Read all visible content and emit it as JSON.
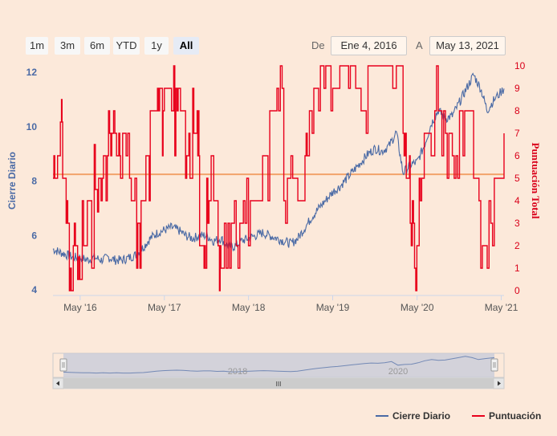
{
  "range_selector": {
    "buttons": [
      "1m",
      "3m",
      "6m",
      "YTD",
      "1y",
      "All"
    ],
    "active": "All",
    "from_label": "De",
    "from_value": "Ene 4, 2016",
    "to_label": "A",
    "to_value": "May 13, 2021"
  },
  "navigator": {
    "year_labels": [
      "2018",
      "2020"
    ],
    "scroll_grip": "III"
  },
  "colors": {
    "background": "#fce9da",
    "cierre": "#4a6aa5",
    "puntuacion": "#e8001c",
    "plot_line": "#f2a36b"
  },
  "chart_data": {
    "type": "line",
    "x_ticks": [
      "May '16",
      "May '17",
      "May '18",
      "May '19",
      "May '20",
      "May '21"
    ],
    "x_range": [
      "2016-01-04",
      "2021-05-13"
    ],
    "y_left": {
      "label": "Cierre Diario",
      "ticks": [
        "4",
        "6",
        "8",
        "10",
        "12"
      ],
      "range": [
        3.8,
        12.5
      ]
    },
    "y_right": {
      "label": "Puntuación Total",
      "ticks": [
        "0",
        "1",
        "2",
        "3",
        "4",
        "5",
        "6",
        "7",
        "8",
        "9",
        "10"
      ],
      "range": [
        0,
        10
      ]
    },
    "plot_line_left_value": 8.25,
    "legend": [
      "Cierre Diario",
      "Puntuación"
    ],
    "legend_position": "bottom-right",
    "grid": false,
    "series": [
      {
        "name": "Cierre Diario",
        "axis": "left",
        "points": [
          [
            "2016-01-04",
            5.5
          ],
          [
            "2016-02-01",
            5.4
          ],
          [
            "2016-03-01",
            5.3
          ],
          [
            "2016-04-01",
            5.2
          ],
          [
            "2016-05-01",
            5.2
          ],
          [
            "2016-06-01",
            5.1
          ],
          [
            "2016-07-01",
            5.2
          ],
          [
            "2016-08-01",
            5.1
          ],
          [
            "2016-09-01",
            5.2
          ],
          [
            "2016-10-01",
            5.1
          ],
          [
            "2016-11-01",
            5.1
          ],
          [
            "2016-12-01",
            5.2
          ],
          [
            "2017-01-01",
            5.3
          ],
          [
            "2017-02-01",
            5.6
          ],
          [
            "2017-03-01",
            5.9
          ],
          [
            "2017-04-01",
            6.1
          ],
          [
            "2017-05-01",
            6.2
          ],
          [
            "2017-06-01",
            6.3
          ],
          [
            "2017-07-01",
            6.2
          ],
          [
            "2017-08-01",
            6.0
          ],
          [
            "2017-09-01",
            5.9
          ],
          [
            "2017-10-01",
            6.0
          ],
          [
            "2017-11-01",
            6.0
          ],
          [
            "2017-12-01",
            5.8
          ],
          [
            "2018-01-01",
            5.9
          ],
          [
            "2018-02-01",
            5.6
          ],
          [
            "2018-03-01",
            5.6
          ],
          [
            "2018-04-01",
            5.8
          ],
          [
            "2018-05-01",
            5.9
          ],
          [
            "2018-06-01",
            6.0
          ],
          [
            "2018-07-01",
            6.1
          ],
          [
            "2018-08-01",
            6.0
          ],
          [
            "2018-09-01",
            5.9
          ],
          [
            "2018-10-01",
            5.8
          ],
          [
            "2018-11-01",
            5.7
          ],
          [
            "2018-12-01",
            5.9
          ],
          [
            "2019-01-01",
            6.3
          ],
          [
            "2019-02-01",
            6.7
          ],
          [
            "2019-03-01",
            7.0
          ],
          [
            "2019-04-01",
            7.3
          ],
          [
            "2019-05-01",
            7.6
          ],
          [
            "2019-06-01",
            7.8
          ],
          [
            "2019-07-01",
            8.1
          ],
          [
            "2019-08-01",
            8.4
          ],
          [
            "2019-09-01",
            8.7
          ],
          [
            "2019-10-01",
            9.0
          ],
          [
            "2019-11-01",
            9.2
          ],
          [
            "2019-12-01",
            9.1
          ],
          [
            "2020-01-01",
            9.3
          ],
          [
            "2020-02-01",
            9.8
          ],
          [
            "2020-03-01",
            8.3
          ],
          [
            "2020-04-01",
            8.6
          ],
          [
            "2020-05-01",
            8.7
          ],
          [
            "2020-06-01",
            9.3
          ],
          [
            "2020-07-01",
            10.1
          ],
          [
            "2020-08-01",
            10.6
          ],
          [
            "2020-09-01",
            10.3
          ],
          [
            "2020-10-01",
            10.4
          ],
          [
            "2020-11-01",
            10.9
          ],
          [
            "2020-12-01",
            11.4
          ],
          [
            "2021-01-01",
            11.9
          ],
          [
            "2021-02-01",
            11.4
          ],
          [
            "2021-03-01",
            10.6
          ],
          [
            "2021-04-01",
            11.0
          ],
          [
            "2021-05-13",
            11.4
          ]
        ]
      },
      {
        "name": "Puntuación",
        "axis": "right",
        "points": [
          [
            "2016-01-04",
            5
          ],
          [
            "2016-01-20",
            6
          ],
          [
            "2016-02-05",
            7.5
          ],
          [
            "2016-02-15",
            5
          ],
          [
            "2016-03-01",
            3
          ],
          [
            "2016-03-15",
            0
          ],
          [
            "2016-04-01",
            2
          ],
          [
            "2016-04-20",
            0.5
          ],
          [
            "2016-05-10",
            2
          ],
          [
            "2016-06-01",
            4
          ],
          [
            "2016-06-20",
            1
          ],
          [
            "2016-07-01",
            4.5
          ],
          [
            "2016-07-20",
            5
          ],
          [
            "2016-08-10",
            6
          ],
          [
            "2016-09-01",
            7
          ],
          [
            "2016-09-20",
            8
          ],
          [
            "2016-10-01",
            6
          ],
          [
            "2016-10-20",
            5
          ],
          [
            "2016-11-01",
            7
          ],
          [
            "2016-12-01",
            5
          ],
          [
            "2017-01-01",
            1
          ],
          [
            "2017-01-20",
            4
          ],
          [
            "2017-02-10",
            6
          ],
          [
            "2017-03-01",
            8
          ],
          [
            "2017-04-01",
            9
          ],
          [
            "2017-04-20",
            8
          ],
          [
            "2017-05-01",
            9
          ],
          [
            "2017-06-01",
            8
          ],
          [
            "2017-06-20",
            9
          ],
          [
            "2017-07-10",
            8
          ],
          [
            "2017-08-01",
            6
          ],
          [
            "2017-08-20",
            5
          ],
          [
            "2017-09-01",
            7
          ],
          [
            "2017-09-20",
            8
          ],
          [
            "2017-10-01",
            2
          ],
          [
            "2017-10-20",
            1
          ],
          [
            "2017-11-01",
            4
          ],
          [
            "2017-11-20",
            6
          ],
          [
            "2017-12-01",
            4
          ],
          [
            "2017-12-20",
            2
          ],
          [
            "2018-01-01",
            1
          ],
          [
            "2018-02-01",
            3
          ],
          [
            "2018-03-01",
            2
          ],
          [
            "2018-04-01",
            3
          ],
          [
            "2018-05-01",
            4
          ],
          [
            "2018-06-01",
            4
          ],
          [
            "2018-07-01",
            6
          ],
          [
            "2018-08-01",
            8
          ],
          [
            "2018-09-01",
            9
          ],
          [
            "2018-10-01",
            5
          ],
          [
            "2018-11-01",
            5
          ],
          [
            "2018-12-01",
            4
          ],
          [
            "2019-01-01",
            6
          ],
          [
            "2019-01-20",
            8
          ],
          [
            "2019-02-01",
            9
          ],
          [
            "2019-03-01",
            10
          ],
          [
            "2019-04-01",
            10
          ],
          [
            "2019-05-01",
            9
          ],
          [
            "2019-06-01",
            10
          ],
          [
            "2019-07-01",
            10
          ],
          [
            "2019-08-01",
            9
          ],
          [
            "2019-09-01",
            8
          ],
          [
            "2019-10-01",
            10
          ],
          [
            "2019-11-01",
            10
          ],
          [
            "2019-12-01",
            10
          ],
          [
            "2020-01-01",
            9
          ],
          [
            "2020-02-01",
            10
          ],
          [
            "2020-03-01",
            7
          ],
          [
            "2020-03-20",
            5
          ],
          [
            "2020-04-01",
            3
          ],
          [
            "2020-04-20",
            2
          ],
          [
            "2020-05-10",
            5
          ],
          [
            "2020-06-01",
            7
          ],
          [
            "2020-07-01",
            8
          ],
          [
            "2020-08-01",
            8
          ],
          [
            "2020-09-01",
            7
          ],
          [
            "2020-10-01",
            6
          ],
          [
            "2020-11-01",
            8
          ],
          [
            "2020-12-01",
            8
          ],
          [
            "2021-01-01",
            5
          ],
          [
            "2021-02-01",
            2
          ],
          [
            "2021-03-01",
            3
          ],
          [
            "2021-04-01",
            5
          ],
          [
            "2021-05-13",
            7
          ]
        ]
      }
    ]
  }
}
